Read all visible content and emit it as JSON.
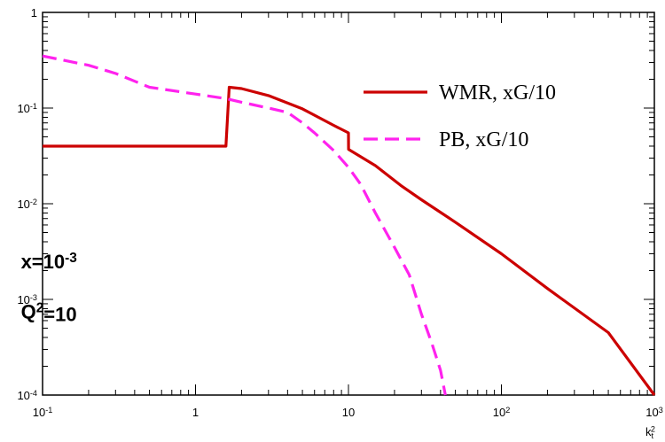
{
  "chart_data": {
    "type": "line",
    "xscale": "log",
    "yscale": "log",
    "xlim": [
      0.1,
      1000
    ],
    "ylim": [
      0.0001,
      1
    ],
    "xlabel_base": "k",
    "xlabel_sub": "t",
    "xlabel_sup": "2",
    "x_ticks": [
      {
        "value": 0.1,
        "base": "10",
        "exp": "-1"
      },
      {
        "value": 1,
        "base": "1",
        "exp": ""
      },
      {
        "value": 10,
        "base": "10",
        "exp": ""
      },
      {
        "value": 100,
        "base": "10",
        "exp": "2"
      },
      {
        "value": 1000,
        "base": "10",
        "exp": "3"
      }
    ],
    "y_ticks": [
      {
        "value": 1,
        "base": "1",
        "exp": ""
      },
      {
        "value": 0.1,
        "base": "10",
        "exp": "-1"
      },
      {
        "value": 0.01,
        "base": "10",
        "exp": "-2"
      },
      {
        "value": 0.001,
        "base": "10",
        "exp": "-3"
      },
      {
        "value": 0.0001,
        "base": "10",
        "exp": "-4"
      }
    ],
    "series": [
      {
        "name": "WMR, xG/10",
        "color": "#cc0000",
        "dash": "solid",
        "x": [
          0.1,
          1.58,
          1.66,
          2.0,
          3.0,
          5.0,
          8.0,
          10.0,
          10.01,
          15.0,
          22.0,
          30.0,
          50.0,
          100.0,
          200.0,
          500.0,
          1000.0
        ],
        "y": [
          0.04,
          0.04,
          0.165,
          0.16,
          0.135,
          0.098,
          0.066,
          0.055,
          0.037,
          0.025,
          0.0155,
          0.011,
          0.0064,
          0.003,
          0.0013,
          0.00045,
          0.0001
        ]
      },
      {
        "name": "PB, xG/10",
        "color": "#ff22ee",
        "dash": "dashed",
        "x": [
          0.1,
          0.2,
          0.3,
          0.5,
          1.0,
          1.6,
          2.0,
          3.0,
          4.0,
          5.0,
          6.0,
          8.0,
          10.0,
          12.0,
          15.0,
          20.0,
          25.0,
          30.0,
          35.0,
          40.0,
          43.0
        ],
        "y": [
          0.35,
          0.28,
          0.23,
          0.165,
          0.14,
          0.125,
          0.115,
          0.1,
          0.09,
          0.07,
          0.055,
          0.036,
          0.024,
          0.016,
          0.008,
          0.0035,
          0.0018,
          0.0007,
          0.00035,
          0.00018,
          0.0001
        ]
      }
    ],
    "legend": {
      "placement": "top-right",
      "entries": [
        "WMR, xG/10",
        "PB, xG/10"
      ]
    },
    "annotations": [
      {
        "base": "x=10",
        "exp": "-3",
        "data_x": 0.5,
        "data_y": 0.0025
      },
      {
        "base": "Q",
        "exp": "2",
        "suffix": "=10",
        "data_x": 0.5,
        "data_y": 0.00075
      }
    ]
  }
}
